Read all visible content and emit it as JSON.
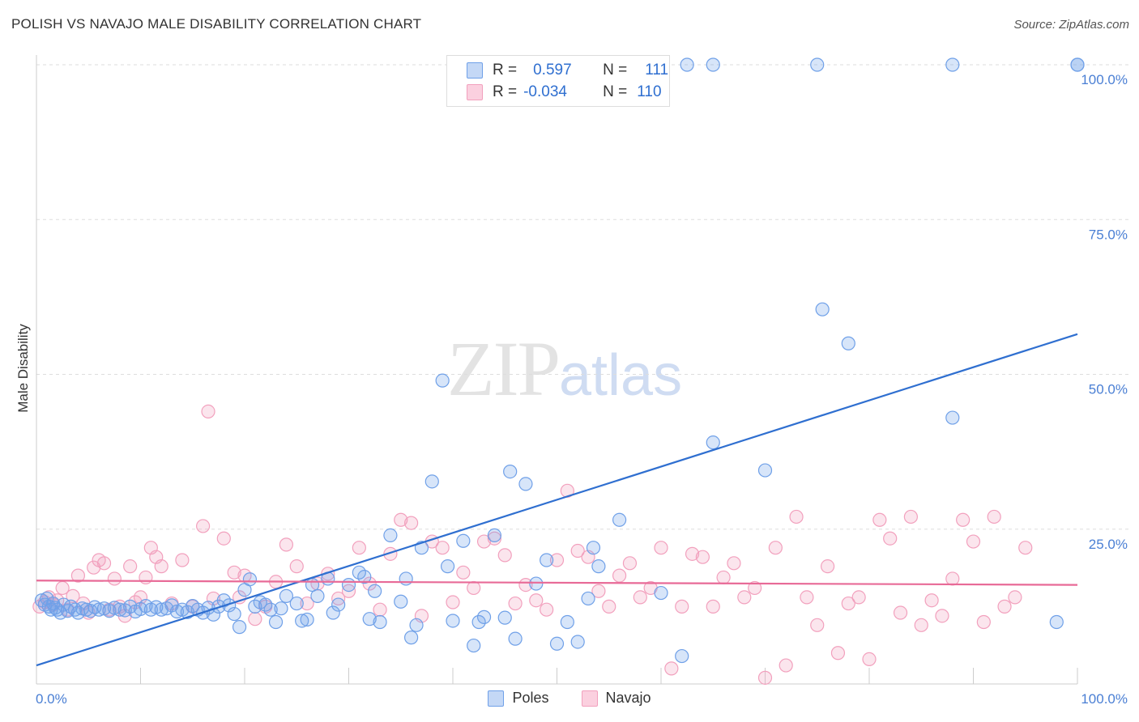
{
  "header": {
    "title": "POLISH VS NAVAJO MALE DISABILITY CORRELATION CHART",
    "source": "Source: ZipAtlas.com"
  },
  "watermark": {
    "zip": "ZIP",
    "atlas": "atlas"
  },
  "legend": {
    "rows": [
      {
        "r_label": "R =",
        "r_value": "0.597",
        "n_label": "N =",
        "n_value": "111",
        "color": "#6fa0e8"
      },
      {
        "r_label": "R =",
        "r_value": "-0.034",
        "n_label": "N =",
        "n_value": "110",
        "color": "#f2a0bd"
      }
    ]
  },
  "bottom_legend": {
    "poles": "Poles",
    "navajo": "Navajo"
  },
  "chart_data": {
    "type": "scatter",
    "title": "POLISH VS NAVAJO MALE DISABILITY CORRELATION CHART",
    "xlabel": "",
    "ylabel": "Male Disability",
    "xlim": [
      0,
      100
    ],
    "ylim": [
      0,
      100
    ],
    "x_tick_labels": [
      "0.0%",
      "100.0%"
    ],
    "y_tick_labels": [
      "100.0%",
      "75.0%",
      "50.0%",
      "25.0%"
    ],
    "y_ticks": [
      100,
      75,
      50,
      25
    ],
    "grid": true,
    "series": [
      {
        "name": "Poles",
        "color": "#6fa0e8",
        "trend": {
          "x": [
            0,
            100
          ],
          "y": [
            3,
            56.5
          ]
        },
        "points": [
          [
            0.5,
            13.5
          ],
          [
            0.8,
            12.8
          ],
          [
            1,
            13.8
          ],
          [
            1.2,
            12.5
          ],
          [
            1.4,
            12.0
          ],
          [
            1.6,
            13.0
          ],
          [
            1.8,
            12.3
          ],
          [
            2,
            12.0
          ],
          [
            2.3,
            11.5
          ],
          [
            2.6,
            12.8
          ],
          [
            3,
            11.8
          ],
          [
            3.3,
            12.5
          ],
          [
            3.7,
            12.0
          ],
          [
            4,
            11.5
          ],
          [
            4.4,
            12.2
          ],
          [
            4.8,
            12.0
          ],
          [
            5.2,
            11.8
          ],
          [
            5.6,
            12.4
          ],
          [
            6,
            12.0
          ],
          [
            6.5,
            12.2
          ],
          [
            7,
            11.8
          ],
          [
            7.5,
            12.3
          ],
          [
            8,
            12.0
          ],
          [
            8.5,
            11.9
          ],
          [
            9,
            12.5
          ],
          [
            9.5,
            11.7
          ],
          [
            10,
            12.1
          ],
          [
            10.5,
            12.6
          ],
          [
            11,
            12.0
          ],
          [
            11.5,
            12.4
          ],
          [
            12,
            12.0
          ],
          [
            12.5,
            12.2
          ],
          [
            13,
            12.7
          ],
          [
            13.5,
            11.7
          ],
          [
            14,
            12.0
          ],
          [
            14.5,
            11.6
          ],
          [
            15,
            12.6
          ],
          [
            15.5,
            12.0
          ],
          [
            16,
            11.5
          ],
          [
            16.5,
            12.3
          ],
          [
            17,
            11.2
          ],
          [
            17.5,
            12.5
          ],
          [
            18,
            13.5
          ],
          [
            18.5,
            12.7
          ],
          [
            19,
            11.3
          ],
          [
            19.5,
            9.2
          ],
          [
            20,
            15.2
          ],
          [
            20.5,
            16.9
          ],
          [
            21,
            12.5
          ],
          [
            21.5,
            13.2
          ],
          [
            22,
            12.8
          ],
          [
            22.5,
            12.0
          ],
          [
            23,
            10.0
          ],
          [
            23.5,
            12.2
          ],
          [
            24,
            14.2
          ],
          [
            25,
            13.0
          ],
          [
            25.5,
            10.2
          ],
          [
            26,
            10.4
          ],
          [
            26.5,
            16.0
          ],
          [
            27,
            14.2
          ],
          [
            28,
            17.0
          ],
          [
            28.5,
            11.5
          ],
          [
            29,
            12.8
          ],
          [
            30,
            16.0
          ],
          [
            31,
            18.0
          ],
          [
            31.5,
            17.3
          ],
          [
            32,
            10.5
          ],
          [
            32.5,
            15.0
          ],
          [
            33,
            10.0
          ],
          [
            34,
            24.0
          ],
          [
            35,
            13.3
          ],
          [
            35.5,
            17.0
          ],
          [
            36,
            7.5
          ],
          [
            36.5,
            9.5
          ],
          [
            37,
            22.0
          ],
          [
            38,
            32.7
          ],
          [
            39,
            49.0
          ],
          [
            39.5,
            19.0
          ],
          [
            40,
            10.2
          ],
          [
            41,
            23.1
          ],
          [
            42,
            6.2
          ],
          [
            42.5,
            10.0
          ],
          [
            43,
            10.8
          ],
          [
            44,
            24.0
          ],
          [
            45,
            10.7
          ],
          [
            45.5,
            34.3
          ],
          [
            46,
            7.3
          ],
          [
            47,
            32.3
          ],
          [
            48,
            16.2
          ],
          [
            49,
            20.0
          ],
          [
            50,
            6.5
          ],
          [
            51,
            10.0
          ],
          [
            52,
            6.8
          ],
          [
            53,
            13.8
          ],
          [
            53.5,
            22.0
          ],
          [
            54,
            19.0
          ],
          [
            56,
            26.5
          ],
          [
            60,
            14.7
          ],
          [
            62,
            4.5
          ],
          [
            65,
            39.0
          ],
          [
            70,
            34.5
          ],
          [
            75,
            100
          ],
          [
            75.5,
            60.5
          ],
          [
            78,
            55.0
          ],
          [
            88,
            43.0
          ],
          [
            98,
            10.0
          ],
          [
            100,
            100
          ],
          [
            100,
            100
          ],
          [
            62.5,
            100
          ],
          [
            88,
            100
          ],
          [
            65,
            100
          ]
        ]
      },
      {
        "name": "Navajo",
        "color": "#f2a0bd",
        "trend": {
          "x": [
            0,
            100
          ],
          "y": [
            16.7,
            16.0
          ]
        },
        "points": [
          [
            0.3,
            12.5
          ],
          [
            0.8,
            13.2
          ],
          [
            1.2,
            14.0
          ],
          [
            1.6,
            12.8
          ],
          [
            2,
            13.5
          ],
          [
            2.5,
            15.5
          ],
          [
            3,
            12.0
          ],
          [
            3.5,
            14.2
          ],
          [
            4,
            17.5
          ],
          [
            4.5,
            13.0
          ],
          [
            5,
            11.5
          ],
          [
            5.5,
            18.8
          ],
          [
            6,
            20.0
          ],
          [
            6.5,
            19.5
          ],
          [
            7,
            12.0
          ],
          [
            7.5,
            17.0
          ],
          [
            8,
            12.5
          ],
          [
            8.5,
            11.0
          ],
          [
            9,
            19.0
          ],
          [
            9.5,
            13.2
          ],
          [
            10,
            14.0
          ],
          [
            10.5,
            17.2
          ],
          [
            11,
            22.0
          ],
          [
            11.5,
            20.5
          ],
          [
            12,
            19.0
          ],
          [
            13,
            13.0
          ],
          [
            14,
            20.0
          ],
          [
            15,
            12.5
          ],
          [
            16,
            25.5
          ],
          [
            16.5,
            44.0
          ],
          [
            17,
            13.8
          ],
          [
            18,
            23.5
          ],
          [
            19,
            18.0
          ],
          [
            19.5,
            14.0
          ],
          [
            20,
            17.5
          ],
          [
            21,
            10.5
          ],
          [
            22,
            12.5
          ],
          [
            23,
            16.5
          ],
          [
            24,
            22.5
          ],
          [
            25,
            19.0
          ],
          [
            26,
            13.0
          ],
          [
            27,
            16.2
          ],
          [
            28,
            17.8
          ],
          [
            29,
            13.8
          ],
          [
            30,
            15.0
          ],
          [
            31,
            22.0
          ],
          [
            32,
            16.2
          ],
          [
            33,
            12.0
          ],
          [
            34,
            21.0
          ],
          [
            35,
            26.5
          ],
          [
            36,
            26.0
          ],
          [
            37,
            11.0
          ],
          [
            38,
            23.0
          ],
          [
            39,
            22.0
          ],
          [
            40,
            13.2
          ],
          [
            41,
            18.0
          ],
          [
            42,
            15.5
          ],
          [
            43,
            23.0
          ],
          [
            44,
            23.5
          ],
          [
            45,
            20.8
          ],
          [
            46,
            13.0
          ],
          [
            47,
            16.0
          ],
          [
            48,
            13.5
          ],
          [
            49,
            12.0
          ],
          [
            50,
            20.0
          ],
          [
            51,
            31.2
          ],
          [
            52,
            21.5
          ],
          [
            53,
            20.5
          ],
          [
            54,
            15.0
          ],
          [
            55,
            12.5
          ],
          [
            56,
            17.5
          ],
          [
            57,
            19.5
          ],
          [
            58,
            14.0
          ],
          [
            59,
            15.5
          ],
          [
            60,
            22.0
          ],
          [
            61,
            2.5
          ],
          [
            62,
            12.5
          ],
          [
            63,
            21.0
          ],
          [
            64,
            20.5
          ],
          [
            65,
            12.5
          ],
          [
            66,
            17.2
          ],
          [
            67,
            19.5
          ],
          [
            68,
            14.0
          ],
          [
            69,
            15.5
          ],
          [
            70,
            1.0
          ],
          [
            71,
            22.0
          ],
          [
            72,
            3.0
          ],
          [
            73,
            27.0
          ],
          [
            74,
            14.0
          ],
          [
            75,
            9.5
          ],
          [
            76,
            19.0
          ],
          [
            77,
            5.0
          ],
          [
            78,
            13.0
          ],
          [
            79,
            14.0
          ],
          [
            80,
            4.0
          ],
          [
            81,
            26.5
          ],
          [
            82,
            23.5
          ],
          [
            83,
            11.5
          ],
          [
            84,
            27.0
          ],
          [
            85,
            9.5
          ],
          [
            86,
            13.5
          ],
          [
            87,
            11.0
          ],
          [
            88,
            17.0
          ],
          [
            89,
            26.5
          ],
          [
            90,
            23.0
          ],
          [
            91,
            10.0
          ],
          [
            92,
            27.0
          ],
          [
            93,
            12.5
          ],
          [
            94,
            14.0
          ],
          [
            95,
            22.0
          ]
        ]
      }
    ]
  }
}
